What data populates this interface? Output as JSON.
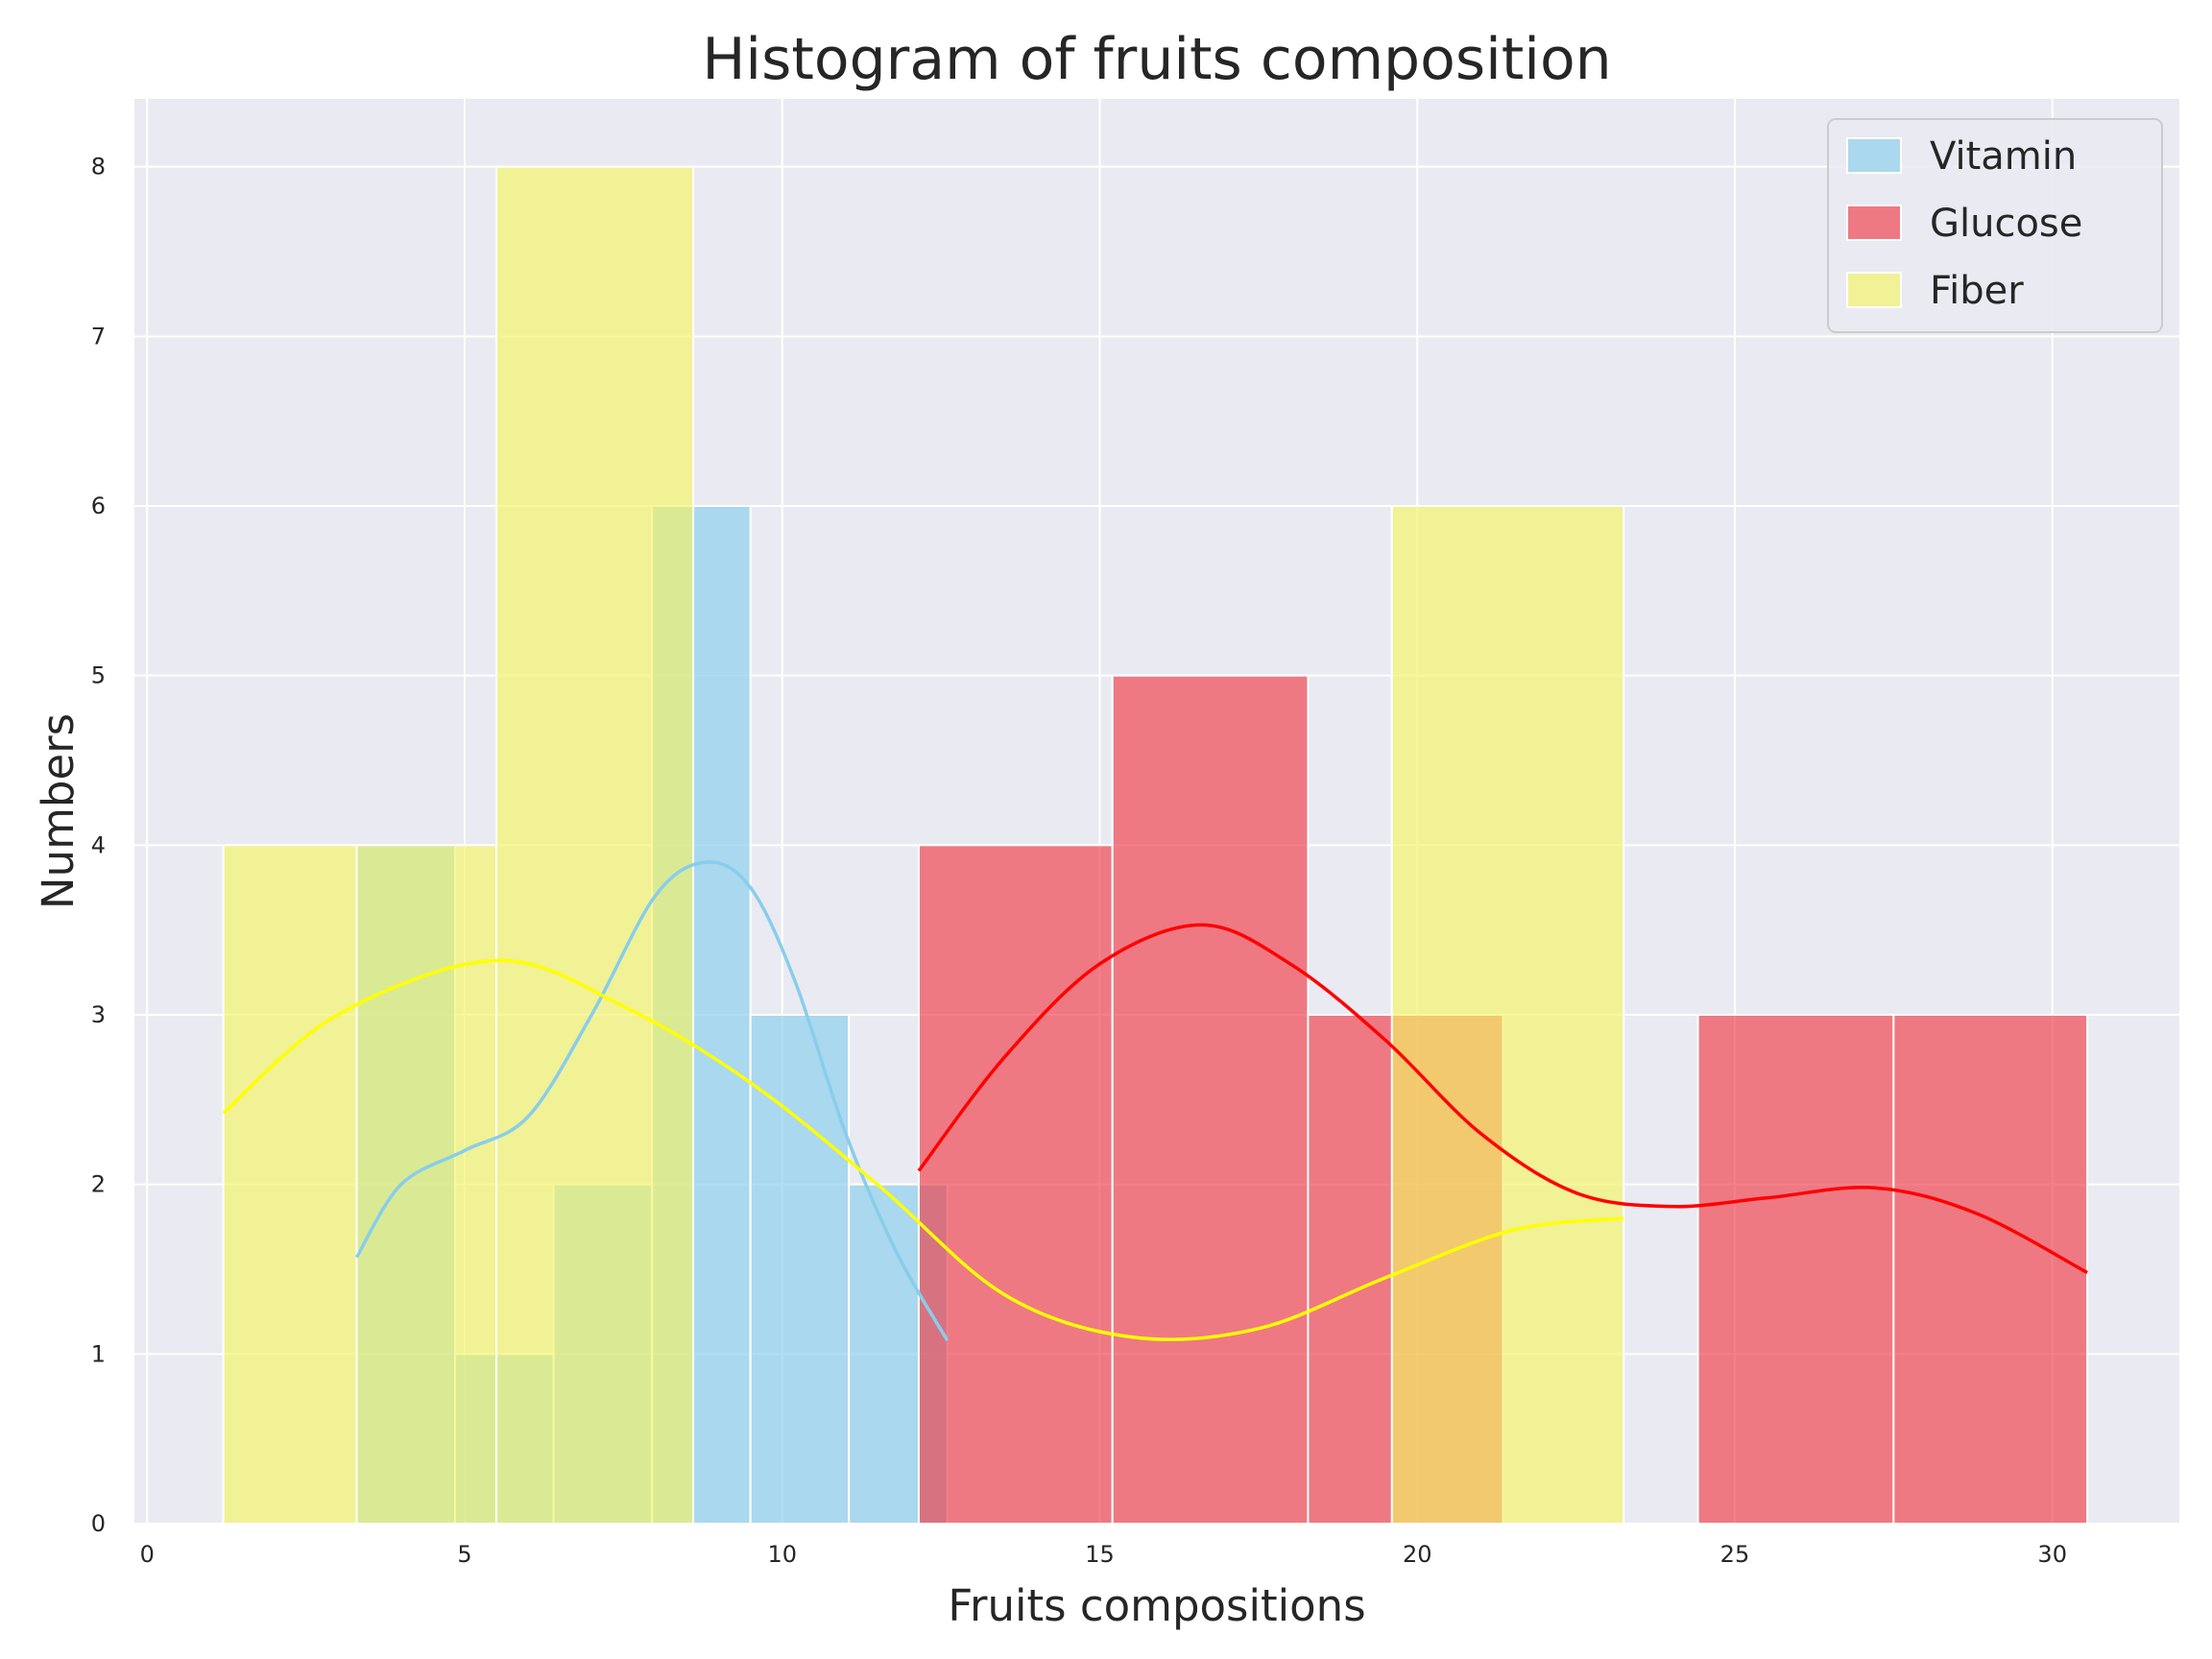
{
  "chart_data": {
    "type": "bar",
    "title": "Histogram of fruits composition",
    "xlabel": "Fruits compositions",
    "ylabel": "Numbers",
    "xlim": [
      -0.2,
      32.0
    ],
    "ylim": [
      0,
      8.4
    ],
    "xticks": [
      0,
      5,
      10,
      15,
      20,
      25,
      30
    ],
    "yticks": [
      0,
      1,
      2,
      3,
      4,
      5,
      6,
      7,
      8
    ],
    "grid": true,
    "legend_position": "top-right",
    "background": "#eaeaf2",
    "series": [
      {
        "name": "Vitamin",
        "color": "#87ceeb",
        "bins": [
          {
            "x0": 3.3,
            "x1": 4.85,
            "count": 4
          },
          {
            "x0": 4.85,
            "x1": 6.4,
            "count": 1
          },
          {
            "x0": 6.4,
            "x1": 7.95,
            "count": 2
          },
          {
            "x0": 7.95,
            "x1": 9.5,
            "count": 6
          },
          {
            "x0": 9.5,
            "x1": 11.05,
            "count": 3
          },
          {
            "x0": 11.05,
            "x1": 12.6,
            "count": 2
          }
        ],
        "kde": [
          [
            3.3,
            1.57
          ],
          [
            4.0,
            2.0
          ],
          [
            5.0,
            2.2
          ],
          [
            6.0,
            2.4
          ],
          [
            7.0,
            3.0
          ],
          [
            8.0,
            3.7
          ],
          [
            8.8,
            3.9
          ],
          [
            9.5,
            3.75
          ],
          [
            10.2,
            3.2
          ],
          [
            11.0,
            2.3
          ],
          [
            11.8,
            1.6
          ],
          [
            12.6,
            1.08
          ]
        ]
      },
      {
        "name": "Glucose",
        "color": "#f03c46",
        "bins": [
          {
            "x0": 12.15,
            "x1": 15.2,
            "count": 4
          },
          {
            "x0": 15.2,
            "x1": 18.28,
            "count": 5
          },
          {
            "x0": 18.28,
            "x1": 21.35,
            "count": 3
          },
          {
            "x0": 21.35,
            "x1": 24.42,
            "count": 0
          },
          {
            "x0": 24.42,
            "x1": 27.5,
            "count": 3
          },
          {
            "x0": 27.5,
            "x1": 30.55,
            "count": 3
          }
        ],
        "kde": [
          [
            12.15,
            2.08
          ],
          [
            13.5,
            2.75
          ],
          [
            15.0,
            3.3
          ],
          [
            16.6,
            3.53
          ],
          [
            18.0,
            3.3
          ],
          [
            19.5,
            2.85
          ],
          [
            21.0,
            2.3
          ],
          [
            22.5,
            1.95
          ],
          [
            24.0,
            1.87
          ],
          [
            25.5,
            1.92
          ],
          [
            27.2,
            1.98
          ],
          [
            28.8,
            1.83
          ],
          [
            30.55,
            1.48
          ]
        ]
      },
      {
        "name": "Fiber",
        "color": "#f5f564",
        "bins": [
          {
            "x0": 1.2,
            "x1": 3.3,
            "count": 4
          },
          {
            "x0": 3.3,
            "x1": 5.5,
            "count": 4
          },
          {
            "x0": 5.5,
            "x1": 8.6,
            "count": 8
          },
          {
            "x0": 8.6,
            "x1": 12.7,
            "count": 0
          },
          {
            "x0": 12.7,
            "x1": 19.6,
            "count": 0
          },
          {
            "x0": 19.6,
            "x1": 23.25,
            "count": 6
          }
        ],
        "kde": [
          [
            1.2,
            2.42
          ],
          [
            3.0,
            3.0
          ],
          [
            5.5,
            3.32
          ],
          [
            7.5,
            3.05
          ],
          [
            9.5,
            2.6
          ],
          [
            11.5,
            2.0
          ],
          [
            13.5,
            1.35
          ],
          [
            15.5,
            1.1
          ],
          [
            17.5,
            1.15
          ],
          [
            19.5,
            1.45
          ],
          [
            21.5,
            1.73
          ],
          [
            23.25,
            1.8
          ]
        ]
      }
    ]
  }
}
